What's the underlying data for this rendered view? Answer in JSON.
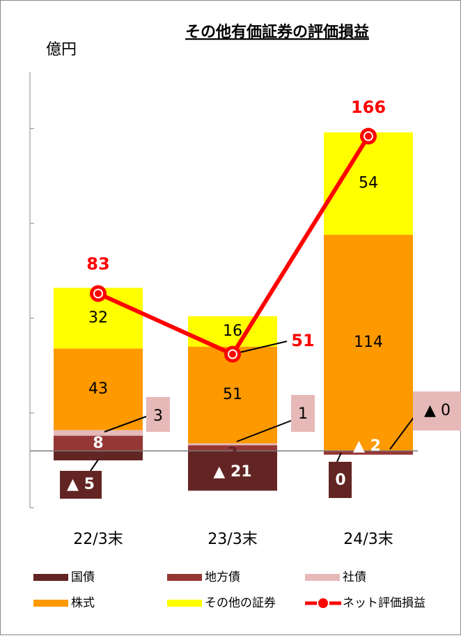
{
  "chart_data": {
    "type": "bar",
    "title": "その他有価証券の評価損益",
    "y_label": "億円",
    "categories": [
      "22/3末",
      "23/3末",
      "24/3末"
    ],
    "ylim": [
      -30,
      200
    ],
    "yticks": [
      -30,
      20,
      70,
      120,
      170
    ],
    "stacked": true,
    "series": [
      {
        "name": "国債",
        "color": "#632523",
        "values": [
          -5,
          -21,
          0
        ],
        "value_labels": [
          "▲ 5",
          "▲ 21",
          "0"
        ]
      },
      {
        "name": "地方債",
        "color": "#953735",
        "values": [
          8,
          3,
          -2
        ],
        "value_labels": [
          "8",
          "3",
          "▲ 2"
        ]
      },
      {
        "name": "社債",
        "color": "#e6b9b8",
        "values": [
          3,
          1,
          0
        ],
        "value_labels": [
          "3",
          "1",
          "▲ 0"
        ]
      },
      {
        "name": "株式",
        "color": "#ff9900",
        "values": [
          43,
          51,
          114
        ]
      },
      {
        "name": "その他の証券",
        "color": "#ffff00",
        "values": [
          32,
          16,
          54
        ]
      },
      {
        "name": "ネット評価損益",
        "color": "#ff0000",
        "type": "line",
        "values": [
          83,
          51,
          166
        ]
      }
    ]
  }
}
